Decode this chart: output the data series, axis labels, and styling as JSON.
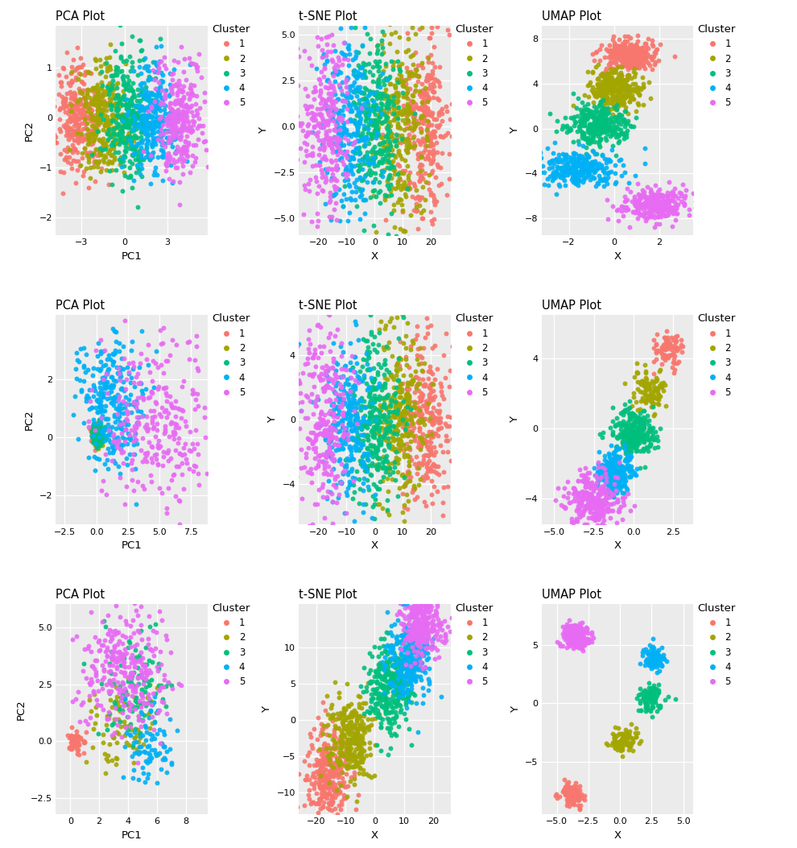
{
  "cluster_colors": [
    "#F8766D",
    "#A3A500",
    "#00BF7D",
    "#00B0F6",
    "#E76BF3"
  ],
  "cluster_labels": [
    "1",
    "2",
    "3",
    "4",
    "5"
  ],
  "background_color": "#FFFFFF",
  "panel_bg": "#EBEBEB",
  "grid_color": "#FFFFFF",
  "point_size": 18,
  "alpha": 0.9,
  "plots": [
    {
      "title": "PCA Plot",
      "xlabel": "PC1",
      "ylabel": "PC2",
      "xlim": [
        -4.8,
        5.8
      ],
      "ylim": [
        -2.35,
        1.85
      ],
      "xticks": [
        -3,
        0,
        3
      ],
      "yticks": [
        -2,
        -1,
        0,
        1
      ],
      "cluster_centers": [
        [
          -3.2,
          0.0
        ],
        [
          -1.5,
          0.0
        ],
        [
          0.2,
          0.0
        ],
        [
          2.0,
          0.0
        ],
        [
          3.8,
          0.0
        ]
      ],
      "cluster_spread": [
        [
          0.75,
          0.55
        ],
        [
          0.8,
          0.55
        ],
        [
          0.85,
          0.6
        ],
        [
          0.85,
          0.55
        ],
        [
          0.85,
          0.55
        ]
      ],
      "n_points": [
        300,
        280,
        310,
        280,
        290
      ]
    },
    {
      "title": "t-SNE Plot",
      "xlabel": "X",
      "ylabel": "Y",
      "xlim": [
        -27,
        27
      ],
      "ylim": [
        -5.9,
        5.5
      ],
      "xticks": [
        -20,
        -10,
        0,
        10,
        20
      ],
      "yticks": [
        -5.0,
        -2.5,
        0.0,
        2.5,
        5.0
      ],
      "cluster_centers": [
        [
          18,
          0.0
        ],
        [
          9,
          0.0
        ],
        [
          0,
          0.0
        ],
        [
          -9,
          0.0
        ],
        [
          -18,
          0.0
        ]
      ],
      "cluster_spread": [
        [
          4.5,
          2.5
        ],
        [
          4.5,
          2.5
        ],
        [
          4.5,
          2.5
        ],
        [
          4.5,
          2.5
        ],
        [
          4.5,
          2.5
        ]
      ],
      "n_points": [
        300,
        280,
        310,
        280,
        290
      ]
    },
    {
      "title": "UMAP Plot",
      "xlabel": "X",
      "ylabel": "Y",
      "xlim": [
        -3.2,
        3.5
      ],
      "ylim": [
        -9.5,
        9.2
      ],
      "xticks": [
        -2,
        0,
        2
      ],
      "yticks": [
        -8,
        -4,
        0,
        4,
        8
      ],
      "cluster_centers": [
        [
          0.7,
          6.5
        ],
        [
          0.0,
          3.5
        ],
        [
          -0.7,
          0.3
        ],
        [
          -1.5,
          -3.5
        ],
        [
          1.8,
          -6.8
        ]
      ],
      "cluster_spread": [
        [
          0.55,
          0.65
        ],
        [
          0.6,
          0.9
        ],
        [
          0.65,
          0.9
        ],
        [
          0.9,
          0.8
        ],
        [
          0.75,
          0.7
        ]
      ],
      "n_points": [
        300,
        280,
        310,
        280,
        290
      ]
    },
    {
      "title": "PCA Plot",
      "xlabel": "PC1",
      "ylabel": "PC2",
      "xlim": [
        -3.2,
        8.8
      ],
      "ylim": [
        -3.0,
        4.2
      ],
      "xticks": [
        -2.5,
        0.0,
        2.5,
        5.0,
        7.5
      ],
      "yticks": [
        -2,
        0,
        2
      ],
      "cluster_centers": [
        [
          -0.1,
          0.05
        ],
        [
          0.05,
          0.05
        ],
        [
          0.1,
          0.05
        ],
        [
          1.2,
          1.2
        ],
        [
          4.8,
          0.5
        ]
      ],
      "cluster_spread": [
        [
          0.2,
          0.15
        ],
        [
          0.22,
          0.18
        ],
        [
          0.22,
          0.18
        ],
        [
          1.3,
          1.1
        ],
        [
          2.2,
          1.4
        ]
      ],
      "n_points": [
        80,
        90,
        100,
        280,
        290
      ]
    },
    {
      "title": "t-SNE Plot",
      "xlabel": "X",
      "ylabel": "Y",
      "xlim": [
        -27,
        27
      ],
      "ylim": [
        -6.5,
        6.5
      ],
      "xticks": [
        -20,
        -10,
        0,
        10,
        20
      ],
      "yticks": [
        -4,
        0,
        4
      ],
      "cluster_centers": [
        [
          18,
          0.0
        ],
        [
          9,
          0.0
        ],
        [
          0,
          0.0
        ],
        [
          -9,
          0.0
        ],
        [
          -18,
          0.0
        ]
      ],
      "cluster_spread": [
        [
          4.5,
          2.5
        ],
        [
          4.5,
          2.5
        ],
        [
          4.5,
          2.5
        ],
        [
          4.5,
          2.5
        ],
        [
          4.5,
          3.0
        ]
      ],
      "n_points": [
        300,
        280,
        310,
        280,
        290
      ]
    },
    {
      "title": "UMAP Plot",
      "xlabel": "X",
      "ylabel": "Y",
      "xlim": [
        -5.8,
        3.8
      ],
      "ylim": [
        -5.5,
        6.5
      ],
      "xticks": [
        -5.0,
        -2.5,
        0.0,
        2.5
      ],
      "yticks": [
        -4,
        0,
        4
      ],
      "cluster_centers": [
        [
          2.2,
          4.5
        ],
        [
          1.0,
          2.2
        ],
        [
          0.0,
          -0.2
        ],
        [
          -1.2,
          -2.5
        ],
        [
          -2.5,
          -4.2
        ]
      ],
      "cluster_spread": [
        [
          0.5,
          0.5
        ],
        [
          0.55,
          0.65
        ],
        [
          0.65,
          0.65
        ],
        [
          0.55,
          0.65
        ],
        [
          0.8,
          0.8
        ]
      ],
      "n_points": [
        80,
        100,
        300,
        280,
        290
      ]
    },
    {
      "title": "PCA Plot",
      "xlabel": "PC1",
      "ylabel": "PC2",
      "xlim": [
        -1.0,
        9.5
      ],
      "ylim": [
        -3.2,
        6.0
      ],
      "xticks": [
        0,
        2,
        4,
        6,
        8
      ],
      "yticks": [
        -2.5,
        0.0,
        2.5,
        5.0
      ],
      "cluster_centers": [
        [
          0.4,
          0.05
        ],
        [
          3.5,
          0.8
        ],
        [
          4.5,
          2.2
        ],
        [
          5.5,
          -0.3
        ],
        [
          3.8,
          3.0
        ]
      ],
      "cluster_spread": [
        [
          0.28,
          0.22
        ],
        [
          1.5,
          1.2
        ],
        [
          1.3,
          1.2
        ],
        [
          0.9,
          0.8
        ],
        [
          1.4,
          1.3
        ]
      ],
      "n_points": [
        60,
        80,
        100,
        80,
        290
      ]
    },
    {
      "title": "t-SNE Plot",
      "xlabel": "X",
      "ylabel": "Y",
      "xlim": [
        -26,
        26
      ],
      "ylim": [
        -13,
        16
      ],
      "xticks": [
        -20,
        -10,
        0,
        10,
        20
      ],
      "yticks": [
        -10,
        -5,
        0,
        5,
        10
      ],
      "cluster_centers": [
        [
          -16,
          -7.5
        ],
        [
          -8,
          -2.5
        ],
        [
          5,
          4.5
        ],
        [
          12,
          8.5
        ],
        [
          16,
          13.5
        ]
      ],
      "cluster_spread": [
        [
          3.8,
          3.0
        ],
        [
          4.0,
          2.8
        ],
        [
          3.8,
          3.0
        ],
        [
          3.8,
          2.8
        ],
        [
          3.5,
          2.5
        ]
      ],
      "n_points": [
        300,
        280,
        310,
        280,
        290
      ]
    },
    {
      "title": "UMAP Plot",
      "xlabel": "X",
      "ylabel": "Y",
      "xlim": [
        -6.2,
        5.8
      ],
      "ylim": [
        -9.5,
        8.5
      ],
      "xticks": [
        -5.0,
        -2.5,
        0.0,
        2.5,
        5.0
      ],
      "yticks": [
        -5,
        0,
        5
      ],
      "cluster_centers": [
        [
          -3.8,
          -7.8
        ],
        [
          0.2,
          -3.2
        ],
        [
          2.5,
          0.5
        ],
        [
          2.8,
          3.8
        ],
        [
          -3.5,
          5.8
        ]
      ],
      "cluster_spread": [
        [
          0.5,
          0.5
        ],
        [
          0.55,
          0.55
        ],
        [
          0.55,
          0.55
        ],
        [
          0.5,
          0.5
        ],
        [
          0.5,
          0.5
        ]
      ],
      "n_points": [
        80,
        90,
        100,
        80,
        290
      ]
    }
  ]
}
